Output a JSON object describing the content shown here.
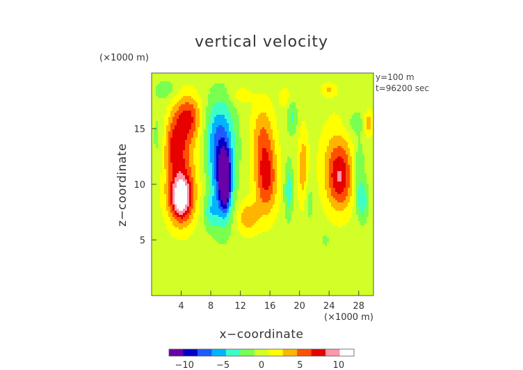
{
  "chart_data": {
    "type": "heatmap",
    "title": "vertical velocity",
    "xlabel": "x−coordinate",
    "ylabel": "z−coordinate",
    "x_unit": "(×1000 m)",
    "y_unit": "(×1000 m)",
    "annotations": [
      "y=100 m",
      "t=96200 sec"
    ],
    "xlim": [
      0,
      30
    ],
    "ylim": [
      0,
      20
    ],
    "x_ticks": [
      4,
      8,
      12,
      16,
      20,
      24,
      28
    ],
    "y_ticks": [
      5,
      10,
      15
    ],
    "colorbar": {
      "range": [
        -12,
        12
      ],
      "ticks": [
        -10,
        -5,
        0,
        5,
        10
      ],
      "tick_labels": [
        "−10",
        "−5",
        "0",
        "5",
        "10"
      ],
      "colors": [
        "#6a00a8",
        "#0000c8",
        "#1e5aff",
        "#00b4ff",
        "#3cffc8",
        "#78ff50",
        "#d2ff28",
        "#ffff00",
        "#ffb400",
        "#ff5000",
        "#e60000",
        "#ff96aa",
        "#ffffff"
      ]
    },
    "features": [
      {
        "x": 9.9,
        "z": 10.2,
        "value": -12,
        "sx": 0.7,
        "sz": 2.3
      },
      {
        "x": 9.5,
        "z": 11.0,
        "value": -7,
        "sx": 1.6,
        "sz": 4.5
      },
      {
        "x": 9.0,
        "z": 14.5,
        "value": -4,
        "sx": 2.2,
        "sz": 3.5
      },
      {
        "x": 8.0,
        "z": 7.5,
        "value": -3,
        "sx": 1.0,
        "sz": 1.5
      },
      {
        "x": 4.0,
        "z": 8.7,
        "value": 10,
        "sx": 1.5,
        "sz": 2.0
      },
      {
        "x": 4.0,
        "z": 11.5,
        "value": 5,
        "sx": 2.3,
        "sz": 4.5
      },
      {
        "x": 5.0,
        "z": 16.0,
        "value": 6,
        "sx": 1.8,
        "sz": 2.0
      },
      {
        "x": 3.0,
        "z": 13.5,
        "value": 4,
        "sx": 1.4,
        "sz": 2.5
      },
      {
        "x": 15.5,
        "z": 10.5,
        "value": 7,
        "sx": 1.5,
        "sz": 3.2
      },
      {
        "x": 15.0,
        "z": 14.5,
        "value": 4,
        "sx": 1.5,
        "sz": 3.0
      },
      {
        "x": 13.0,
        "z": 7.0,
        "value": 4,
        "sx": 1.5,
        "sz": 1.5
      },
      {
        "x": 18.5,
        "z": 9.5,
        "value": -4,
        "sx": 0.6,
        "sz": 2.5
      },
      {
        "x": 19.0,
        "z": 16.0,
        "value": -3,
        "sx": 0.7,
        "sz": 1.5
      },
      {
        "x": 20.5,
        "z": 11.5,
        "value": 4,
        "sx": 0.7,
        "sz": 3.5
      },
      {
        "x": 21.3,
        "z": 8.5,
        "value": -2,
        "sx": 0.6,
        "sz": 2.0
      },
      {
        "x": 25.5,
        "z": 10.5,
        "value": 6,
        "sx": 1.7,
        "sz": 2.8
      },
      {
        "x": 25.0,
        "z": 12.0,
        "value": 3,
        "sx": 2.3,
        "sz": 4.0
      },
      {
        "x": 28.5,
        "z": 8.5,
        "value": -4,
        "sx": 0.8,
        "sz": 1.8
      },
      {
        "x": 28.0,
        "z": 11.5,
        "value": -3,
        "sx": 0.8,
        "sz": 2.5
      },
      {
        "x": 29.3,
        "z": 15.5,
        "value": 4,
        "sx": 0.6,
        "sz": 1.2
      },
      {
        "x": 27.5,
        "z": 15.5,
        "value": -2,
        "sx": 1.5,
        "sz": 1.2
      },
      {
        "x": 1.0,
        "z": 14.0,
        "value": -2,
        "sx": 1.0,
        "sz": 3.0
      },
      {
        "x": 2.0,
        "z": 18.5,
        "value": -2,
        "sx": 1.5,
        "sz": 1.0
      },
      {
        "x": 24.0,
        "z": 18.5,
        "value": 3,
        "sx": 1.0,
        "sz": 0.6
      },
      {
        "x": 23.5,
        "z": 5.0,
        "value": -2,
        "sx": 0.5,
        "sz": 0.6
      },
      {
        "x": 12.0,
        "z": 18.0,
        "value": 2,
        "sx": 1.5,
        "sz": 0.8
      },
      {
        "x": 18.0,
        "z": 17.8,
        "value": 2,
        "sx": 0.8,
        "sz": 1.0
      }
    ]
  }
}
